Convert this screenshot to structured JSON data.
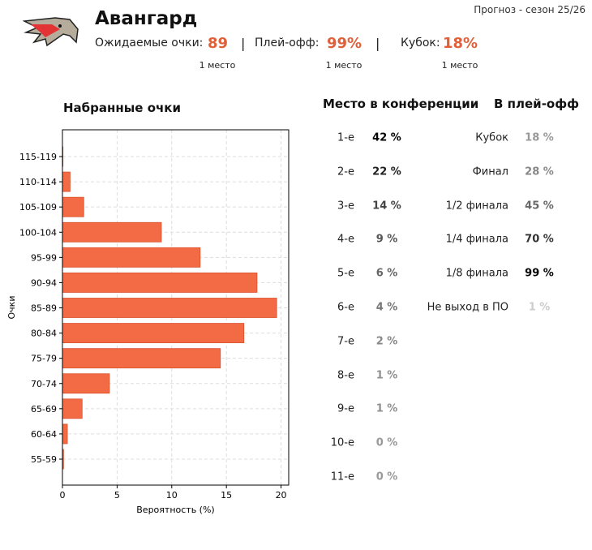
{
  "header": {
    "team": "Авангард",
    "season": "Прогноз - сезон 25/26",
    "expected_points_label": "Ожидаемые очки:",
    "expected_points": "89",
    "expected_points_rank": "1 место",
    "playoff_label": "Плей-офф:",
    "playoff_value": "99%",
    "playoff_rank": "1 место",
    "cup_label": "Кубок:",
    "cup_value": "18%",
    "cup_rank": "1 место",
    "separator": "|",
    "accent": "#e0603a"
  },
  "conference": {
    "title": "Место в конференции",
    "rows": [
      {
        "place": "1-е",
        "value": "42 %",
        "color": "#000000"
      },
      {
        "place": "2-е",
        "value": "22 %",
        "color": "#222222"
      },
      {
        "place": "3-е",
        "value": "14 %",
        "color": "#444444"
      },
      {
        "place": "4-е",
        "value": "9 %",
        "color": "#555555"
      },
      {
        "place": "5-е",
        "value": "6 %",
        "color": "#666666"
      },
      {
        "place": "6-е",
        "value": "4 %",
        "color": "#777777"
      },
      {
        "place": "7-е",
        "value": "2 %",
        "color": "#888888"
      },
      {
        "place": "8-е",
        "value": "1 %",
        "color": "#909090"
      },
      {
        "place": "9-е",
        "value": "1 %",
        "color": "#909090"
      },
      {
        "place": "10-е",
        "value": "0 %",
        "color": "#999999"
      },
      {
        "place": "11-е",
        "value": "0 %",
        "color": "#999999"
      }
    ]
  },
  "playoff": {
    "title": "В плей-офф",
    "rows": [
      {
        "stage": "Кубок",
        "value": "18 %",
        "color": "#999999"
      },
      {
        "stage": "Финал",
        "value": "28 %",
        "color": "#888888"
      },
      {
        "stage": "1/2 финала",
        "value": "45 %",
        "color": "#666666"
      },
      {
        "stage": "1/4 финала",
        "value": "70 %",
        "color": "#333333"
      },
      {
        "stage": "1/8 финала",
        "value": "99 %",
        "color": "#000000"
      },
      {
        "stage": "Не выход в ПО",
        "value": "1 %",
        "color": "#cccccc"
      }
    ]
  },
  "chart_data": {
    "type": "bar",
    "orientation": "horizontal",
    "title": "Набранные очки",
    "xlabel": "Вероятность (%)",
    "ylabel": "Очки",
    "categories": [
      "115-119",
      "110-114",
      "105-109",
      "100-104",
      "95-99",
      "90-94",
      "85-89",
      "80-84",
      "75-79",
      "70-74",
      "65-69",
      "60-64",
      "55-59"
    ],
    "values": [
      0.05,
      0.7,
      1.95,
      9.05,
      12.6,
      17.8,
      19.6,
      16.6,
      14.45,
      4.3,
      1.8,
      0.45,
      0.1
    ],
    "xlim": [
      0,
      20.7
    ],
    "xticks": [
      "0",
      "5",
      "10",
      "15",
      "20"
    ],
    "grid": true,
    "bar_color": "#f26b45"
  }
}
